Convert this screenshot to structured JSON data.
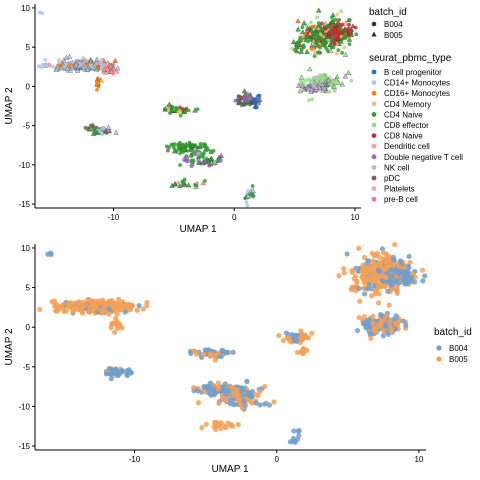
{
  "chart_data": [
    {
      "type": "scatter",
      "xlabel": "UMAP 1",
      "ylabel": "UMAP 2",
      "xlim": [
        -16.5,
        10.5
      ],
      "ylim": [
        -15.5,
        10.5
      ],
      "xticks": [
        -10,
        0,
        10
      ],
      "yticks": [
        -15,
        -10,
        -5,
        0,
        5,
        10
      ],
      "grid": false,
      "legends": [
        {
          "title": "batch_id",
          "kind": "shape",
          "items": [
            {
              "label": "B004",
              "shape": "circle"
            },
            {
              "label": "B005",
              "shape": "triangle"
            }
          ]
        },
        {
          "title": "seurat_pbmc_type",
          "kind": "color",
          "items": [
            {
              "label": "B cell progenitor",
              "color": "#1f77b4"
            },
            {
              "label": "CD14+ Monocytes",
              "color": "#aec7e8"
            },
            {
              "label": "CD16+ Monocytes",
              "color": "#ff7f0e"
            },
            {
              "label": "CD4 Memory",
              "color": "#ffbb78"
            },
            {
              "label": "CD4 Naive",
              "color": "#2ca02c"
            },
            {
              "label": "CD8 effector",
              "color": "#98df8a"
            },
            {
              "label": "CD8 Naive",
              "color": "#d62728"
            },
            {
              "label": "Dendritic cell",
              "color": "#ff9896"
            },
            {
              "label": "Double negative T cell",
              "color": "#9467bd"
            },
            {
              "label": "NK cell",
              "color": "#c5b0d5"
            },
            {
              "label": "pDC",
              "color": "#8c564b"
            },
            {
              "label": "Platelets",
              "color": "#f4a3a8"
            },
            {
              "label": "pre-B cell",
              "color": "#e377c2"
            }
          ]
        }
      ],
      "clusters": [
        {
          "cx": -16.0,
          "cy": 9.4,
          "sx": 0.1,
          "sy": 0.1,
          "n": 2,
          "colors": [
            [
              "CD14+ Monocytes",
              1
            ]
          ],
          "tri": 0.0
        },
        {
          "cx": -12.5,
          "cy": 2.7,
          "sx": 1.3,
          "sy": 0.35,
          "n": 260,
          "colors": [
            [
              "CD14+ Monocytes",
              10
            ],
            [
              "CD16+ Monocytes",
              1
            ],
            [
              "Dendritic cell",
              1
            ]
          ],
          "tri": 0.4
        },
        {
          "cx": -10.3,
          "cy": 2.2,
          "sx": 0.4,
          "sy": 0.25,
          "n": 24,
          "colors": [
            [
              "Dendritic cell",
              3
            ],
            [
              "Platelets",
              1
            ]
          ],
          "tri": 0.4
        },
        {
          "cx": -11.3,
          "cy": 0.3,
          "sx": 0.15,
          "sy": 0.5,
          "n": 14,
          "colors": [
            [
              "CD16+ Monocytes",
              3
            ],
            [
              "CD4 Memory",
              1
            ]
          ],
          "tri": 0.4
        },
        {
          "cx": -11.1,
          "cy": -5.6,
          "sx": 0.45,
          "sy": 0.3,
          "n": 40,
          "colors": [
            [
              "CD14+ Monocytes",
              2
            ],
            [
              "CD4 Naive",
              2
            ],
            [
              "pDC",
              1
            ]
          ],
          "tri": 0.4
        },
        {
          "cx": -4.7,
          "cy": -3.0,
          "sx": 0.55,
          "sy": 0.25,
          "n": 45,
          "colors": [
            [
              "CD4 Naive",
              4
            ],
            [
              "CD8 Naive",
              1
            ],
            [
              "pDC",
              1
            ],
            [
              "CD4 Memory",
              1
            ]
          ],
          "tri": 0.4
        },
        {
          "cx": -3.8,
          "cy": -7.8,
          "sx": 0.9,
          "sy": 0.35,
          "n": 70,
          "colors": [
            [
              "CD4 Naive",
              6
            ],
            [
              "pDC",
              1
            ],
            [
              "CD8 effector",
              1
            ]
          ],
          "tri": 0.4
        },
        {
          "cx": -2.5,
          "cy": -9.2,
          "sx": 0.8,
          "sy": 0.5,
          "n": 55,
          "colors": [
            [
              "Double negative T cell",
              2
            ],
            [
              "CD4 Naive",
              3
            ],
            [
              "CD8 effector",
              1
            ],
            [
              "NK cell",
              1
            ]
          ],
          "tri": 0.4
        },
        {
          "cx": -4.0,
          "cy": -12.3,
          "sx": 0.7,
          "sy": 0.25,
          "n": 20,
          "colors": [
            [
              "CD4 Naive",
              3
            ],
            [
              "Dendritic cell",
              1
            ]
          ],
          "tri": 0.4
        },
        {
          "cx": 0.9,
          "cy": -1.6,
          "sx": 0.35,
          "sy": 0.4,
          "n": 40,
          "colors": [
            [
              "CD4 Naive",
              2
            ],
            [
              "Double negative T cell",
              2
            ],
            [
              "pDC",
              1
            ]
          ],
          "tri": 0.4
        },
        {
          "cx": 1.8,
          "cy": -1.9,
          "sx": 0.2,
          "sy": 0.45,
          "n": 22,
          "colors": [
            [
              "Double negative T cell",
              2
            ],
            [
              "B cell progenitor",
              1
            ]
          ],
          "tri": 0.4
        },
        {
          "cx": 1.3,
          "cy": -13.8,
          "sx": 0.2,
          "sy": 0.7,
          "n": 16,
          "colors": [
            [
              "CD4 Naive",
              2
            ],
            [
              "CD14+ Monocytes",
              1
            ]
          ],
          "tri": 0.4
        },
        {
          "cx": 5.4,
          "cy": 5.2,
          "sx": 0.15,
          "sy": 0.4,
          "n": 14,
          "colors": [
            [
              "CD4 Naive",
              2
            ],
            [
              "pDC",
              1
            ],
            [
              "CD4 Memory",
              1
            ]
          ],
          "tri": 0.6
        },
        {
          "cx": 7.5,
          "cy": 6.5,
          "sx": 1.0,
          "sy": 1.1,
          "n": 260,
          "colors": [
            [
              "CD4 Naive",
              6
            ],
            [
              "CD8 Naive",
              2
            ],
            [
              "CD4 Memory",
              2
            ],
            [
              "pDC",
              1
            ],
            [
              "CD8 effector",
              1
            ],
            [
              "CD16+ Monocytes",
              1
            ]
          ],
          "tri": 0.4
        },
        {
          "cx": 8.6,
          "cy": 6.9,
          "sx": 0.6,
          "sy": 0.5,
          "n": 70,
          "colors": [
            [
              "CD8 Naive",
              3
            ],
            [
              "pDC",
              1
            ],
            [
              "CD4 Naive",
              1
            ]
          ],
          "tri": 0.4
        },
        {
          "cx": 7.4,
          "cy": 0.5,
          "sx": 0.75,
          "sy": 0.55,
          "n": 140,
          "colors": [
            [
              "CD8 effector",
              5
            ],
            [
              "NK cell",
              1
            ]
          ],
          "tri": 0.4
        },
        {
          "cx": 6.7,
          "cy": -0.2,
          "sx": 0.5,
          "sy": 0.2,
          "n": 30,
          "colors": [
            [
              "NK cell",
              2
            ],
            [
              "Double negative T cell",
              1
            ]
          ],
          "tri": 0.4
        }
      ]
    },
    {
      "type": "scatter",
      "xlabel": "UMAP 1",
      "ylabel": "UMAP 2",
      "xlim": [
        -17.0,
        10.5
      ],
      "ylim": [
        -15.5,
        10.5
      ],
      "xticks": [
        -10,
        0,
        10
      ],
      "yticks": [
        -15,
        -10,
        -5,
        0,
        5,
        10
      ],
      "grid": false,
      "legends": [
        {
          "title": "batch_id",
          "kind": "color",
          "items": [
            {
              "label": "B004",
              "color": "#6f9fd0"
            },
            {
              "label": "B005",
              "color": "#f7a055"
            }
          ]
        }
      ],
      "clusters": [
        {
          "cx": -16.0,
          "cy": 9.3,
          "sx": 0.12,
          "sy": 0.12,
          "n": 3,
          "colors": [
            [
              "B004",
              1
            ]
          ]
        },
        {
          "cx": -12.5,
          "cy": 2.6,
          "sx": 1.3,
          "sy": 0.35,
          "n": 320,
          "colors": [
            [
              "B005",
              7
            ],
            [
              "B004",
              1
            ]
          ]
        },
        {
          "cx": -11.2,
          "cy": 0.4,
          "sx": 0.15,
          "sy": 0.45,
          "n": 16,
          "colors": [
            [
              "B005",
              1
            ]
          ]
        },
        {
          "cx": -11.3,
          "cy": -5.6,
          "sx": 0.45,
          "sy": 0.3,
          "n": 50,
          "colors": [
            [
              "B004",
              2
            ],
            [
              "B005",
              1
            ]
          ]
        },
        {
          "cx": -4.7,
          "cy": -3.3,
          "sx": 0.6,
          "sy": 0.25,
          "n": 55,
          "colors": [
            [
              "B004",
              2
            ],
            [
              "B005",
              1
            ]
          ]
        },
        {
          "cx": -3.8,
          "cy": -7.8,
          "sx": 0.9,
          "sy": 0.35,
          "n": 110,
          "colors": [
            [
              "B004",
              3
            ],
            [
              "B005",
              1
            ]
          ]
        },
        {
          "cx": -2.4,
          "cy": -9.0,
          "sx": 0.8,
          "sy": 0.55,
          "n": 90,
          "colors": [
            [
              "B004",
              1
            ],
            [
              "B005",
              1
            ]
          ]
        },
        {
          "cx": -4.0,
          "cy": -12.3,
          "sx": 0.7,
          "sy": 0.25,
          "n": 22,
          "colors": [
            [
              "B005",
              1
            ]
          ]
        },
        {
          "cx": 1.4,
          "cy": -1.3,
          "sx": 0.45,
          "sy": 0.35,
          "n": 45,
          "colors": [
            [
              "B005",
              2
            ],
            [
              "B004",
              1
            ]
          ]
        },
        {
          "cx": 1.8,
          "cy": -3.1,
          "sx": 0.2,
          "sy": 0.25,
          "n": 12,
          "colors": [
            [
              "B005",
              1
            ]
          ]
        },
        {
          "cx": 1.3,
          "cy": -13.8,
          "sx": 0.2,
          "sy": 0.7,
          "n": 10,
          "colors": [
            [
              "B004",
              1
            ]
          ]
        },
        {
          "cx": 5.4,
          "cy": 5.2,
          "sx": 0.12,
          "sy": 0.35,
          "n": 10,
          "colors": [
            [
              "B005",
              1
            ]
          ]
        },
        {
          "cx": 7.5,
          "cy": 6.8,
          "sx": 1.0,
          "sy": 1.2,
          "n": 320,
          "colors": [
            [
              "B005",
              4
            ],
            [
              "B004",
              1
            ]
          ]
        },
        {
          "cx": 8.6,
          "cy": 6.6,
          "sx": 0.6,
          "sy": 0.55,
          "n": 90,
          "colors": [
            [
              "B004",
              2
            ],
            [
              "B005",
              1
            ]
          ]
        },
        {
          "cx": 7.3,
          "cy": 0.3,
          "sx": 0.75,
          "sy": 0.6,
          "n": 150,
          "colors": [
            [
              "B004",
              1
            ],
            [
              "B005",
              1
            ]
          ]
        }
      ]
    }
  ]
}
